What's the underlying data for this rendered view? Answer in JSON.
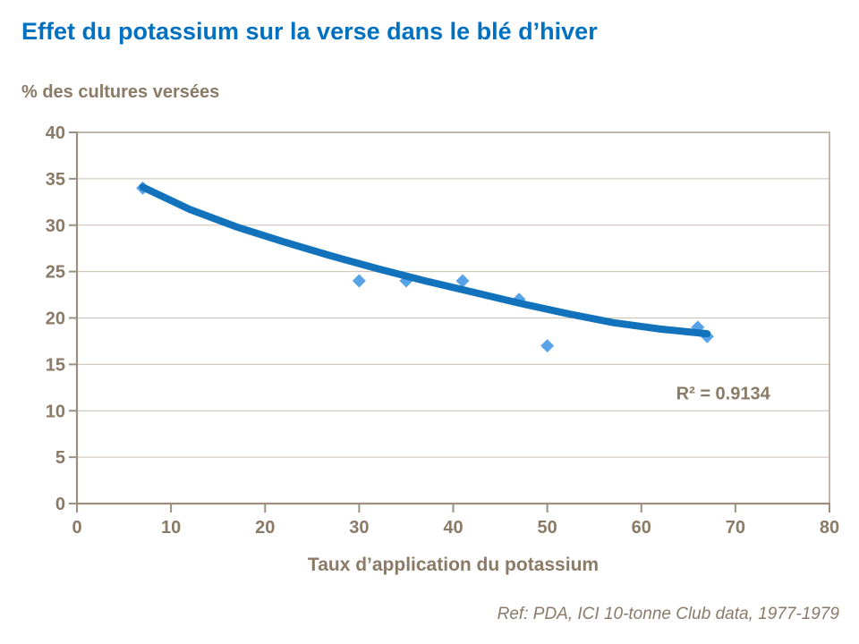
{
  "title": "Effet du potassium sur la verse dans le blé d’hiver",
  "y_axis_label": "% des cultures versées",
  "x_axis_label": "Taux d’application du potassium",
  "reference": "Ref: PDA, ICI 10-tonne Club data, 1977-1979",
  "colors": {
    "title_blue": "#0070C0",
    "text_brown": "#8a7a66",
    "axis_line": "#9b9080",
    "gridline": "#cbc1b0",
    "plot_border": "#b1a796",
    "trend_blue": "#1273bc",
    "point_blue": "#58a3e8"
  },
  "chart_data": {
    "type": "scatter",
    "title": "Effet du potassium sur la verse dans le blé d’hiver",
    "xlabel": "Taux d’application du potassium",
    "ylabel": "% des cultures versées",
    "xlim": [
      0,
      80
    ],
    "ylim": [
      0,
      40
    ],
    "x_ticks": [
      0,
      10,
      20,
      30,
      40,
      50,
      60,
      70,
      80
    ],
    "y_ticks": [
      0,
      5,
      10,
      15,
      20,
      25,
      30,
      35,
      40
    ],
    "grid": "horizontal",
    "legend": "none",
    "points": [
      [
        7,
        34
      ],
      [
        30,
        24
      ],
      [
        35,
        24
      ],
      [
        41,
        24
      ],
      [
        47,
        22
      ],
      [
        50,
        17
      ],
      [
        66,
        19
      ],
      [
        67,
        18
      ]
    ],
    "trend": {
      "type": "curved-fit",
      "r_squared": 0.9134,
      "curve": [
        [
          7,
          34.1
        ],
        [
          12,
          31.7
        ],
        [
          17,
          29.8
        ],
        [
          22,
          28.2
        ],
        [
          27,
          26.7
        ],
        [
          32,
          25.3
        ],
        [
          37,
          24.0
        ],
        [
          42,
          22.8
        ],
        [
          47,
          21.6
        ],
        [
          52,
          20.5
        ],
        [
          57,
          19.5
        ],
        [
          62,
          18.8
        ],
        [
          67,
          18.3
        ]
      ]
    },
    "annotation": {
      "text": "R² = 0.9134",
      "x": 68.7,
      "y": 11.9
    }
  }
}
